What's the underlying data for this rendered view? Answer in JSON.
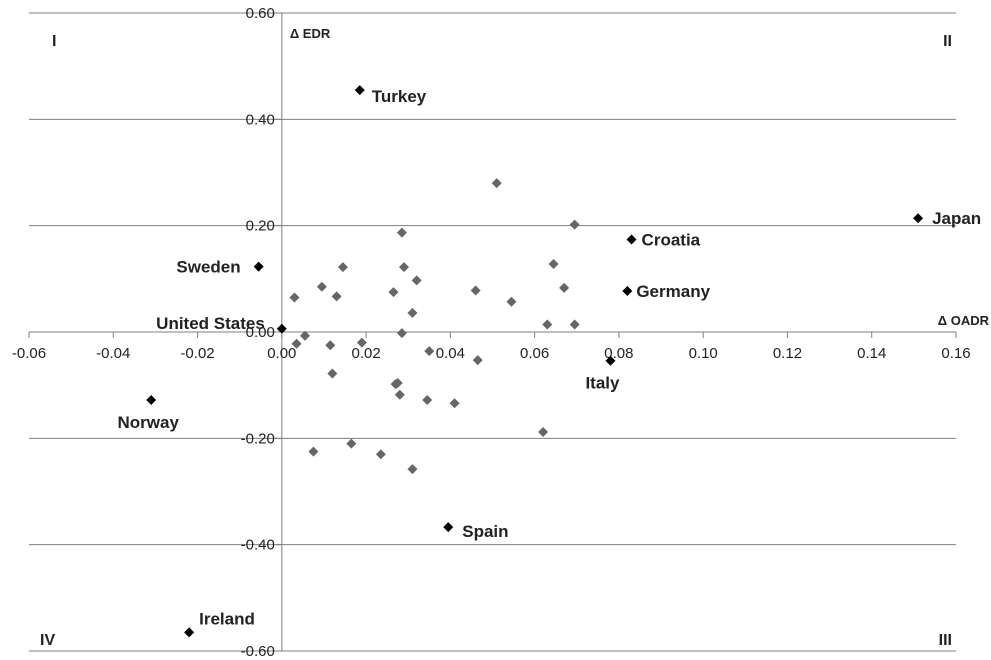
{
  "chart_data": {
    "type": "scatter",
    "title": "",
    "xlabel": "Δ OADR",
    "ylabel": "Δ EDR",
    "xlim": [
      -0.06,
      0.16
    ],
    "ylim": [
      -0.6,
      0.6
    ],
    "x_ticks": [
      "-0.06",
      "-0.04",
      "-0.02",
      "0.00",
      "0.02",
      "0.04",
      "0.06",
      "0.08",
      "0.10",
      "0.12",
      "0.14",
      "0.16"
    ],
    "y_ticks": [
      "0.60",
      "0.40",
      "0.20",
      "0.00",
      "-0.20",
      "-0.40",
      "-0.60"
    ],
    "grid": "horizontal",
    "quadrants": {
      "I": "I",
      "II": "II",
      "III": "III",
      "IV": "IV"
    },
    "labeled_points": [
      {
        "label": "Turkey",
        "x": 0.0185,
        "y": 0.455
      },
      {
        "label": "Japan",
        "x": 0.151,
        "y": 0.214
      },
      {
        "label": "Croatia",
        "x": 0.083,
        "y": 0.174
      },
      {
        "label": "Sweden",
        "x": -0.0055,
        "y": 0.123
      },
      {
        "label": "Germany",
        "x": 0.082,
        "y": 0.077
      },
      {
        "label": "United States",
        "x": 0.0,
        "y": 0.006
      },
      {
        "label": "Italy",
        "x": 0.078,
        "y": -0.054
      },
      {
        "label": "Norway",
        "x": -0.031,
        "y": -0.128
      },
      {
        "label": "Spain",
        "x": 0.0395,
        "y": -0.367
      },
      {
        "label": "Ireland",
        "x": -0.022,
        "y": -0.565
      }
    ],
    "other_points": [
      {
        "x": 0.051,
        "y": 0.28
      },
      {
        "x": 0.0695,
        "y": 0.202
      },
      {
        "x": 0.0285,
        "y": 0.187
      },
      {
        "x": 0.0645,
        "y": 0.128
      },
      {
        "x": 0.0145,
        "y": 0.122
      },
      {
        "x": 0.029,
        "y": 0.122
      },
      {
        "x": 0.032,
        "y": 0.097
      },
      {
        "x": 0.0095,
        "y": 0.085
      },
      {
        "x": 0.067,
        "y": 0.083
      },
      {
        "x": 0.046,
        "y": 0.078
      },
      {
        "x": 0.0265,
        "y": 0.075
      },
      {
        "x": 0.013,
        "y": 0.067
      },
      {
        "x": 0.003,
        "y": 0.065
      },
      {
        "x": 0.0545,
        "y": 0.057
      },
      {
        "x": 0.031,
        "y": 0.036
      },
      {
        "x": 0.063,
        "y": 0.014
      },
      {
        "x": 0.0695,
        "y": 0.014
      },
      {
        "x": 0.0285,
        "y": -0.002
      },
      {
        "x": 0.0055,
        "y": -0.007
      },
      {
        "x": 0.0035,
        "y": -0.022
      },
      {
        "x": 0.019,
        "y": -0.02
      },
      {
        "x": 0.0115,
        "y": -0.025
      },
      {
        "x": 0.035,
        "y": -0.036
      },
      {
        "x": 0.0465,
        "y": -0.053
      },
      {
        "x": 0.012,
        "y": -0.078
      },
      {
        "x": 0.0275,
        "y": -0.096
      },
      {
        "x": 0.027,
        "y": -0.098
      },
      {
        "x": 0.028,
        "y": -0.118
      },
      {
        "x": 0.0345,
        "y": -0.128
      },
      {
        "x": 0.041,
        "y": -0.134
      },
      {
        "x": 0.062,
        "y": -0.188
      },
      {
        "x": 0.0165,
        "y": -0.21
      },
      {
        "x": 0.0075,
        "y": -0.225
      },
      {
        "x": 0.0235,
        "y": -0.23
      },
      {
        "x": 0.031,
        "y": -0.258
      }
    ],
    "colors": {
      "labeled": "#000000",
      "other": "#666666",
      "axis": "#7f7f7f",
      "grid": "#7f7f7f"
    }
  }
}
